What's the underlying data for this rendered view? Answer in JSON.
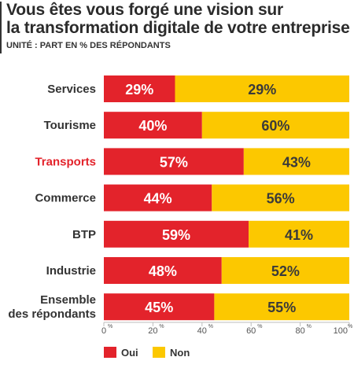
{
  "header": {
    "title_line1": "Vous êtes vous forgé une vision sur",
    "title_line2": "la transformation digitale de votre entreprise ?",
    "subtitle": "UNITÉ : PART EN % DES RÉPONDANTS"
  },
  "chart_data": {
    "type": "bar",
    "orientation": "horizontal",
    "stacked": true,
    "categories": [
      [
        "Services"
      ],
      [
        "Tourisme"
      ],
      [
        "Transports"
      ],
      [
        "Commerce"
      ],
      [
        "BTP"
      ],
      [
        "Industrie"
      ],
      [
        "Ensemble",
        "des répondants"
      ]
    ],
    "highlight_category_index": 2,
    "series": [
      {
        "name": "Oui",
        "color": "#e3232b",
        "values": [
          29,
          40,
          57,
          44,
          59,
          48,
          45
        ]
      },
      {
        "name": "Non",
        "color": "#fcc800",
        "values": [
          29,
          60,
          43,
          56,
          41,
          52,
          55
        ]
      }
    ],
    "data_labels": {
      "Oui": [
        "29%",
        "40%",
        "57%",
        "44%",
        "59%",
        "48%",
        "45%"
      ],
      "Non": [
        "29%",
        "60%",
        "43%",
        "56%",
        "41%",
        "52%",
        "55%"
      ]
    },
    "xlim": [
      0,
      100
    ],
    "xticks": [
      0,
      20,
      40,
      60,
      80,
      100
    ],
    "xtick_suffix": "%",
    "grid": false,
    "legend_position": "bottom-left",
    "category_label_color": "#333333",
    "highlight_label_color": "#e3232b"
  }
}
